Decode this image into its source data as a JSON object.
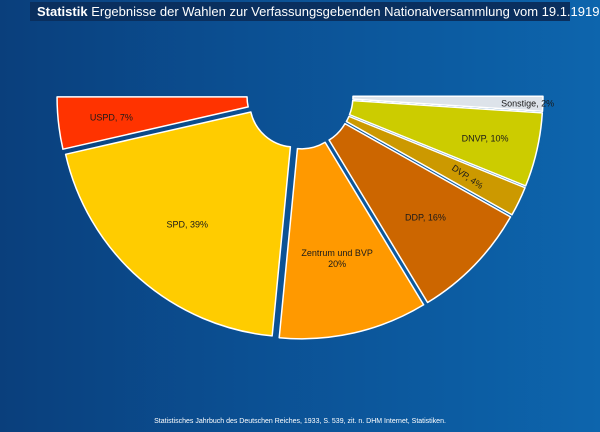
{
  "title": {
    "bold": "Statistik",
    "rest": "Ergebnisse der Wahlen zur Verfassungsgebenden Nationalversammlung vom 19.1.1919"
  },
  "source": "Statistisches Jahrbuch des Deutschen Reiches, 1933, S. 539, zit. n. DHM Internet, Statistiken.",
  "chart_data": {
    "type": "pie",
    "title": "Ergebnisse der Wahlen zur Verfassungsgebenden Nationalversammlung vom 19.1.1919",
    "shape": "semicircle, exploded slices",
    "slices": [
      {
        "label": "USPD",
        "value": 7,
        "text": "USPD, 7%",
        "color": "#ff3300",
        "text_color": "#1a1a1a"
      },
      {
        "label": "SPD",
        "value": 39,
        "text": "SPD, 39%",
        "color": "#ffcc00",
        "text_color": "#1a1a1a"
      },
      {
        "label": "Zentrum und BVP",
        "value": 20,
        "text": [
          "Zentrum und BVP",
          "20%"
        ],
        "color": "#ff9900",
        "text_color": "#1a1a1a"
      },
      {
        "label": "DDP",
        "value": 16,
        "text": "DDP, 16%",
        "color": "#cc6600",
        "text_color": "#1a1a1a"
      },
      {
        "label": "DVP",
        "value": 4,
        "text": "DVP, 4%",
        "color": "#cc9900",
        "text_color": "#1a1a1a"
      },
      {
        "label": "DNVP",
        "value": 10,
        "text": "DNVP, 10%",
        "color": "#cccc00",
        "text_color": "#1a1a1a"
      },
      {
        "label": "Sonstige",
        "value": 2,
        "text": "Sonstige, 2%",
        "color": "#dde3ea",
        "text_color": "#1a1a1a"
      }
    ],
    "colors": {
      "background": "#0b4f92",
      "title_bar": "#0a2f5e",
      "title_text": "#ffffff",
      "source_text": "#ffffff"
    }
  }
}
